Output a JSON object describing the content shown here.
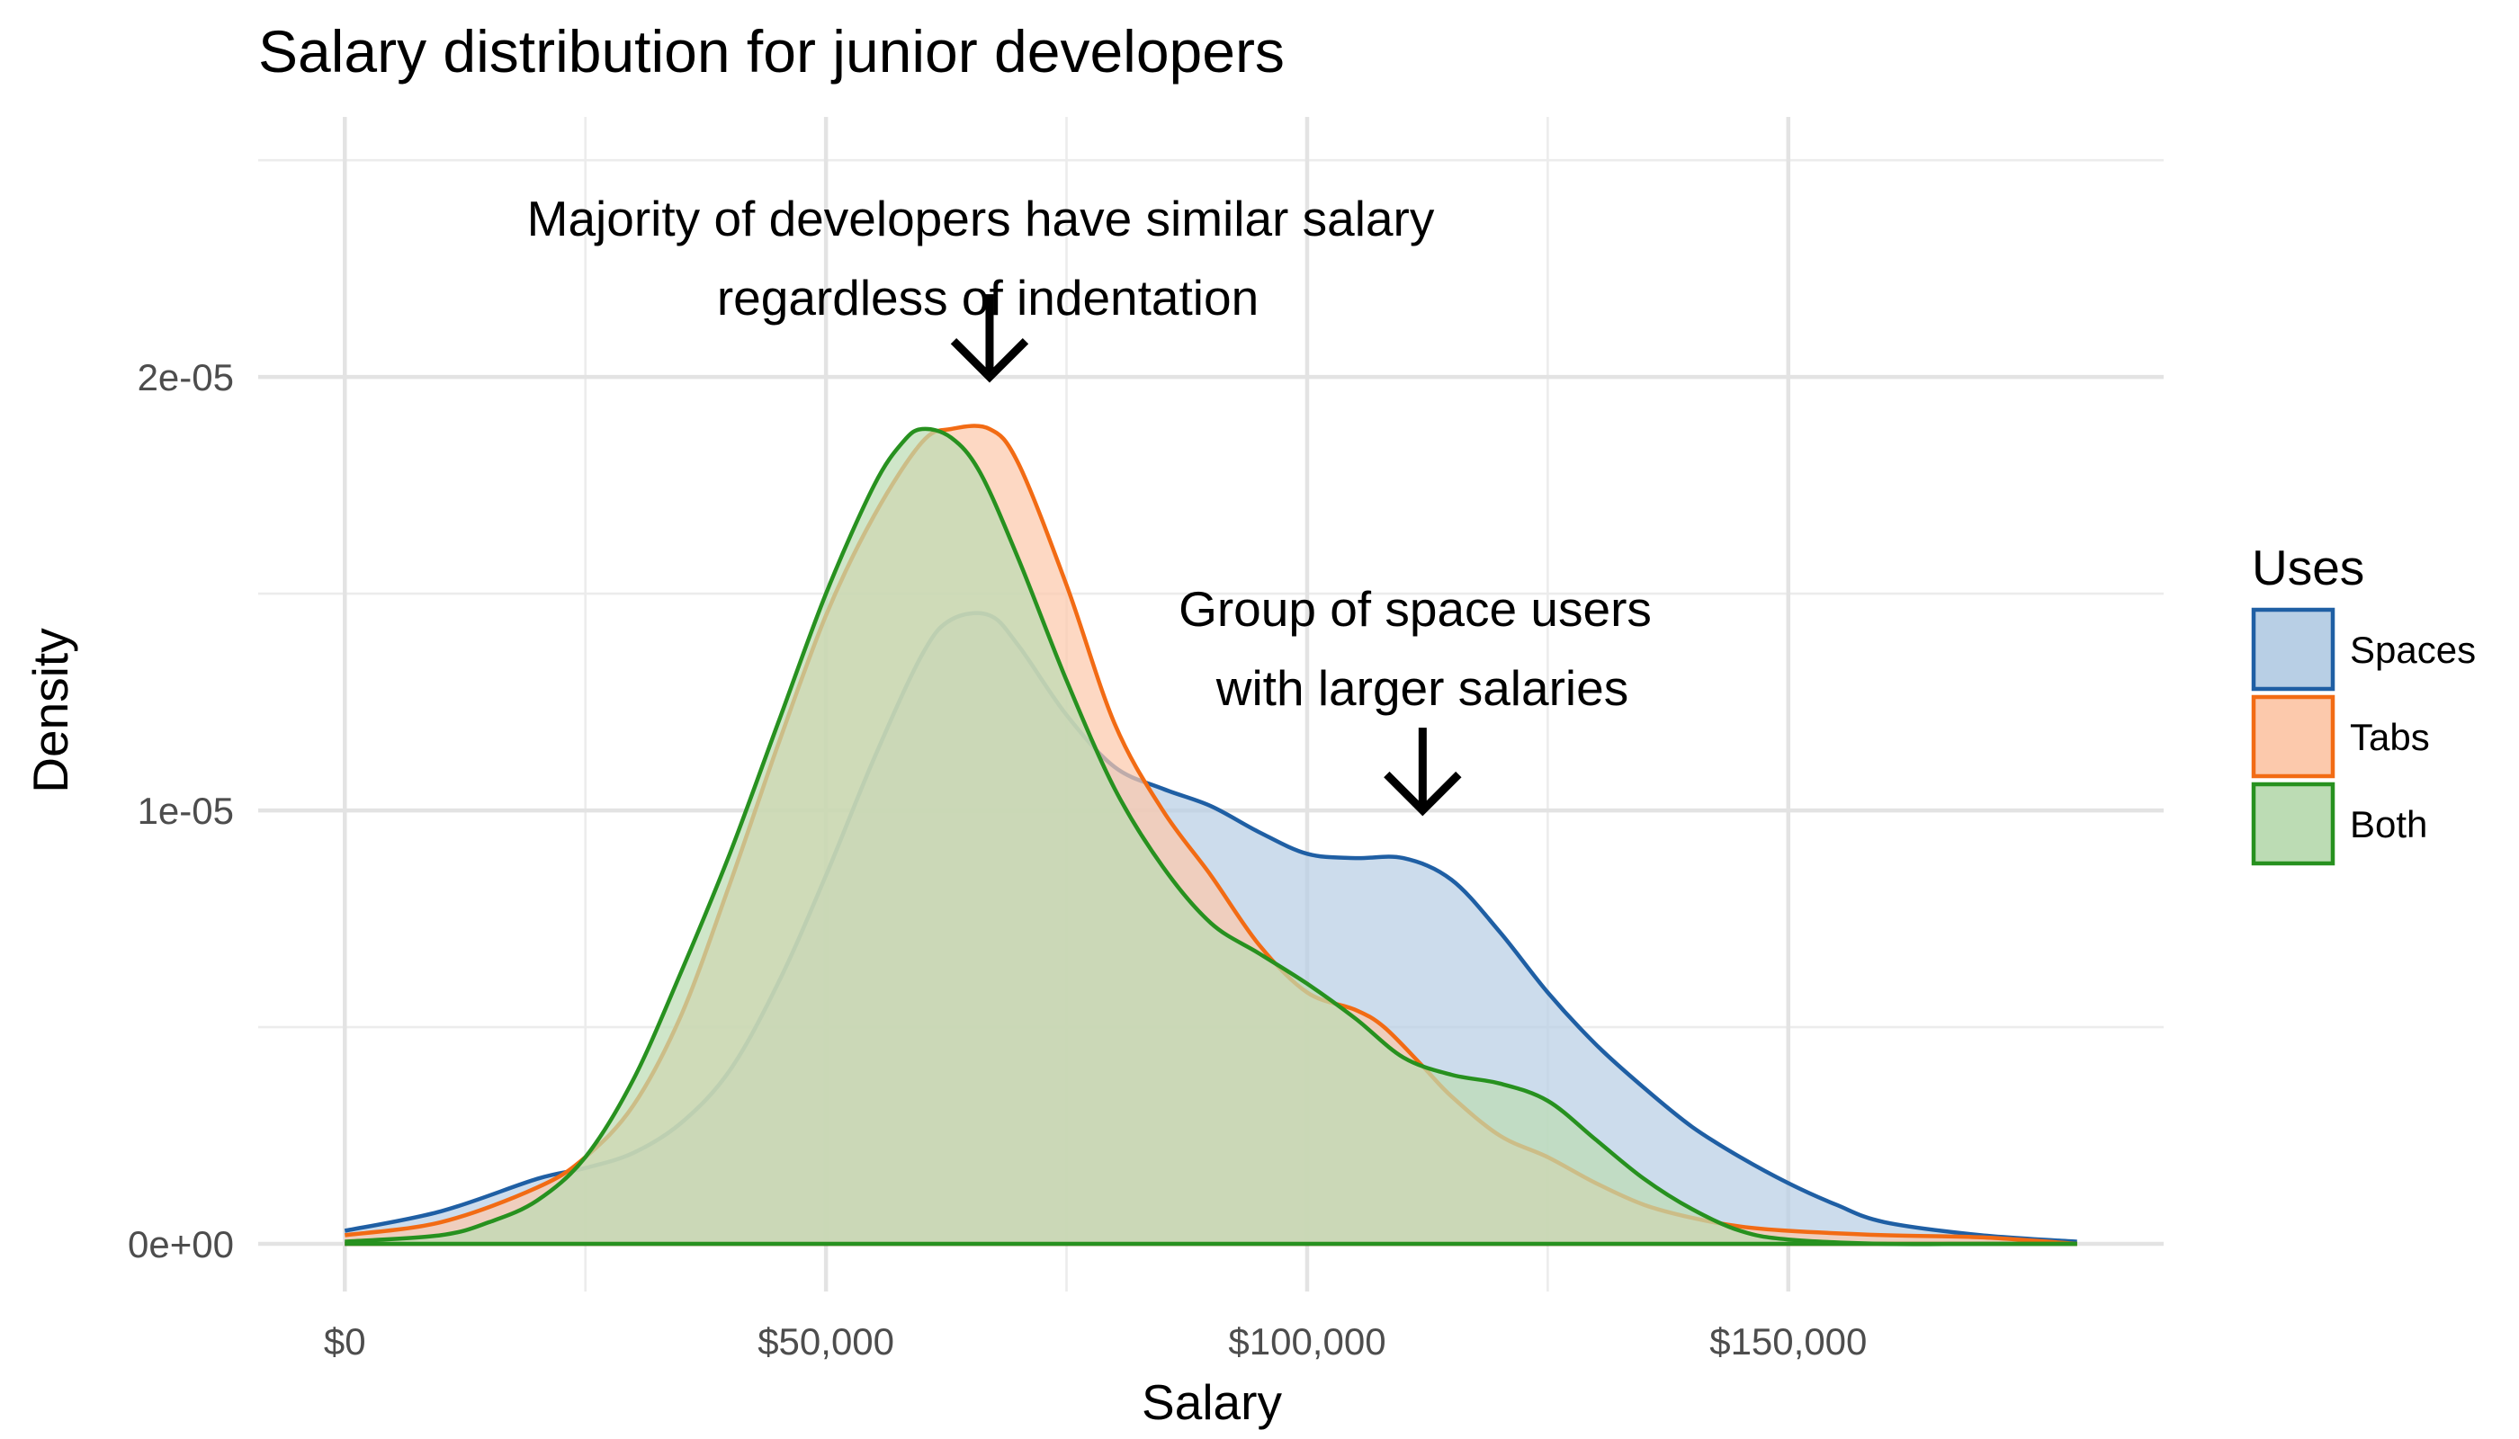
{
  "chart_data": {
    "type": "area",
    "title": "Salary distribution for junior developers",
    "xlabel": "Salary",
    "ylabel": "Density",
    "xlim": [
      -9000,
      189000
    ],
    "ylim": [
      -1.1e-06,
      2.6e-05
    ],
    "x_ticks": [
      0,
      50000,
      100000,
      150000
    ],
    "x_tick_labels": [
      "$0",
      "$50,000",
      "$100,000",
      "$150,000"
    ],
    "x_minor": [
      25000,
      75000,
      125000
    ],
    "y_ticks": [
      0,
      1e-05,
      2e-05
    ],
    "y_tick_labels": [
      "0e+00",
      "1e-05",
      "2e-05"
    ],
    "y_minor": [
      5e-06,
      1.5e-05,
      2.5e-05
    ],
    "grid": true,
    "legend": {
      "title": "Uses",
      "position": "right",
      "entries": [
        "Spaces",
        "Tabs",
        "Both"
      ]
    },
    "series": [
      {
        "name": "Spaces",
        "line_color": "#1f5fa4",
        "fill_color": "#b8cfe5",
        "fill_opacity": 0.72,
        "x": [
          0,
          10000,
          20000,
          25000,
          30000,
          35000,
          40000,
          45000,
          50000,
          55000,
          60000,
          63000,
          67000,
          70000,
          75000,
          80000,
          85000,
          90000,
          95000,
          100000,
          105000,
          110000,
          115000,
          120000,
          125000,
          130000,
          135000,
          140000,
          145000,
          150000,
          155000,
          160000,
          170000,
          180000
        ],
        "y": [
          3e-07,
          7.5e-07,
          1.5e-06,
          1.75e-06,
          2.1e-06,
          2.8e-06,
          4e-06,
          6e-06,
          8.5e-06,
          1.12e-05,
          1.36e-05,
          1.44e-05,
          1.45e-05,
          1.38e-05,
          1.22e-05,
          1.1e-05,
          1.05e-05,
          1.01e-05,
          9.5e-06,
          9e-06,
          8.9e-06,
          8.9e-06,
          8.4e-06,
          7.2e-06,
          5.8e-06,
          4.6e-06,
          3.6e-06,
          2.7e-06,
          2e-06,
          1.4e-06,
          9e-07,
          5e-07,
          2e-07,
          5e-08
        ]
      },
      {
        "name": "Tabs",
        "line_color": "#f26b14",
        "fill_color": "#fcc9ac",
        "fill_opacity": 0.72,
        "x": [
          0,
          10000,
          20000,
          25000,
          30000,
          35000,
          40000,
          45000,
          50000,
          55000,
          60000,
          63000,
          67000,
          70000,
          75000,
          80000,
          85000,
          90000,
          95000,
          100000,
          105000,
          108000,
          112000,
          115000,
          120000,
          125000,
          130000,
          135000,
          140000,
          145000,
          150000,
          160000,
          170000,
          180000
        ],
        "y": [
          2e-07,
          5e-07,
          1.3e-06,
          2e-06,
          3.2e-06,
          5.3e-06,
          8.3e-06,
          1.15e-05,
          1.45e-05,
          1.68e-05,
          1.85e-05,
          1.88e-05,
          1.88e-05,
          1.8e-05,
          1.52e-05,
          1.2e-05,
          1e-05,
          8.5e-06,
          6.9e-06,
          5.8e-06,
          5.4e-06,
          5e-06,
          4.1e-06,
          3.4e-06,
          2.5e-06,
          2e-06,
          1.4e-06,
          9e-07,
          6e-07,
          4e-07,
          3e-07,
          2e-07,
          1.5e-07,
          0
        ]
      },
      {
        "name": "Both",
        "line_color": "#27911f",
        "fill_color": "#bcdcb4",
        "fill_opacity": 0.72,
        "x": [
          0,
          10000,
          15000,
          20000,
          25000,
          30000,
          35000,
          40000,
          45000,
          50000,
          55000,
          58000,
          60000,
          63000,
          66000,
          70000,
          75000,
          80000,
          85000,
          90000,
          95000,
          100000,
          105000,
          110000,
          115000,
          120000,
          125000,
          130000,
          135000,
          140000,
          145000,
          150000,
          160000,
          170000,
          180000
        ],
        "y": [
          5e-08,
          2e-07,
          5e-07,
          1e-06,
          2e-06,
          3.8e-06,
          6.3e-06,
          9e-06,
          1.2e-05,
          1.5e-05,
          1.75e-05,
          1.85e-05,
          1.88e-05,
          1.86e-05,
          1.78e-05,
          1.58e-05,
          1.3e-05,
          1.05e-05,
          8.7e-06,
          7.4e-06,
          6.7e-06,
          6e-06,
          5.2e-06,
          4.3e-06,
          3.9e-06,
          3.7e-06,
          3.3e-06,
          2.4e-06,
          1.5e-06,
          8e-07,
          3e-07,
          1e-07,
          0,
          0,
          0
        ]
      }
    ],
    "annotations": [
      {
        "lines": [
          "Majority of developers have similar salary",
          "regardless of indentation"
        ],
        "arrow_to": [
          67000,
          2e-05
        ]
      },
      {
        "lines": [
          "Group of space users",
          "with larger salaries"
        ],
        "arrow_to": [
          112000,
          1e-05
        ]
      }
    ]
  }
}
